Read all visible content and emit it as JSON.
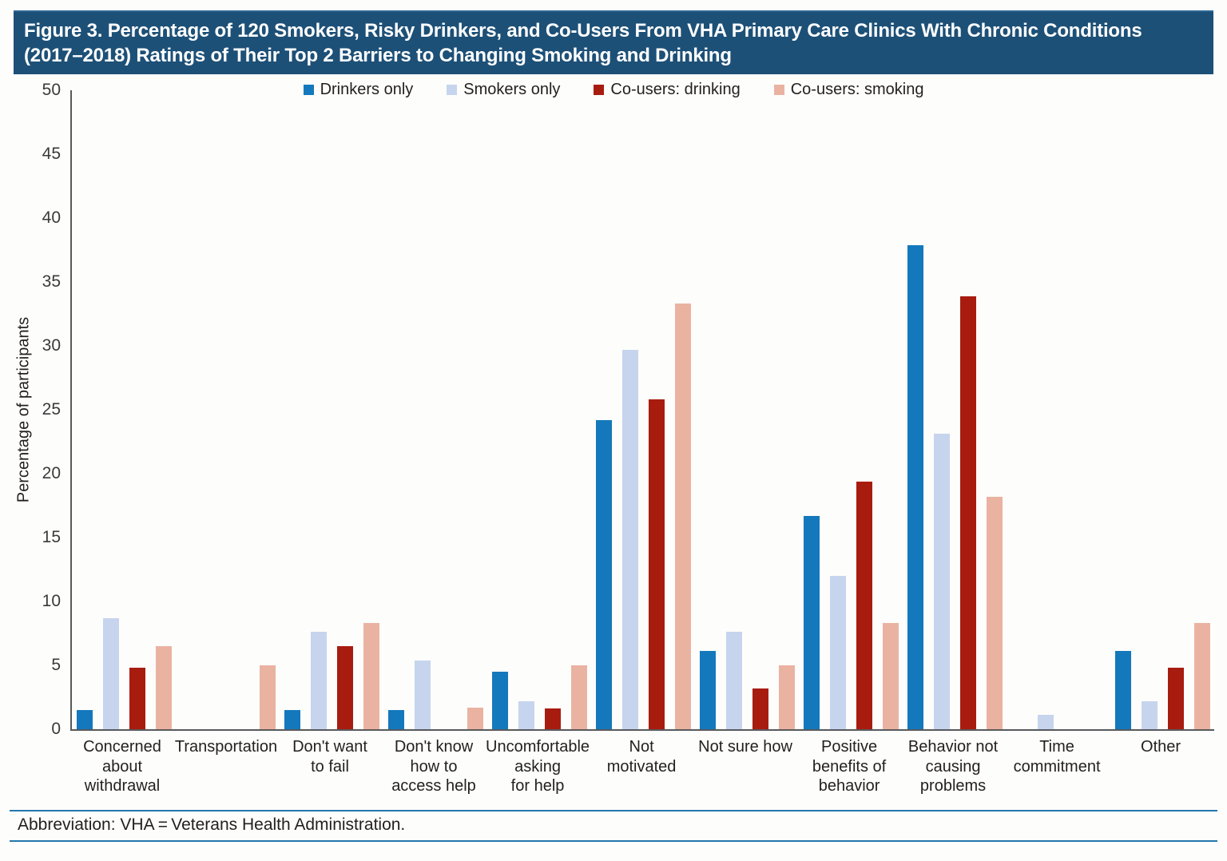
{
  "title": {
    "line1": "Figure 3. Percentage of 120 Smokers, Risky Drinkers, and Co-Users From VHA Primary Care Clinics With Chronic Conditions",
    "line2": "(2017–2018) Ratings of Their Top 2 Barriers to Changing Smoking and Drinking"
  },
  "footnote": "Abbreviation: VHA = Veterans Health Administration.",
  "colors": {
    "banner_bg": "#1d5077",
    "banner_text": "#ffffff",
    "rule": "#2177ad",
    "axis": "#58595b",
    "text": "#231f20"
  },
  "chart_data": {
    "type": "bar",
    "title": "",
    "xlabel": "",
    "ylabel": "Percentage of participants",
    "ylim": [
      0,
      50
    ],
    "ytick_step": 5,
    "grid": false,
    "legend_position": "top-center",
    "categories": [
      "Concerned\nabout\nwithdrawal",
      "Transportation",
      "Don't want\nto fail",
      "Don't know\nhow to\naccess help",
      "Uncomfortable\nasking\nfor help",
      "Not\nmotivated",
      "Not sure how",
      "Positive\nbenefits of\nbehavior",
      "Behavior not\ncausing\nproblems",
      "Time\ncommitment",
      "Other"
    ],
    "series": [
      {
        "name": "Drinkers only",
        "color": "#1478bc",
        "values": [
          1.5,
          0,
          1.5,
          1.5,
          4.5,
          24.2,
          6.1,
          16.7,
          37.9,
          0,
          6.1
        ]
      },
      {
        "name": "Smokers only",
        "color": "#c6d4ee",
        "values": [
          8.7,
          0,
          7.6,
          5.4,
          2.2,
          29.7,
          7.6,
          12.0,
          23.1,
          1.1,
          2.2
        ]
      },
      {
        "name": "Co-users: drinking",
        "color": "#a81c10",
        "values": [
          4.8,
          0,
          6.5,
          0,
          1.6,
          25.8,
          3.2,
          19.4,
          33.9,
          0,
          4.8
        ]
      },
      {
        "name": "Co-users: smoking",
        "color": "#eab3a1",
        "values": [
          6.5,
          5.0,
          8.3,
          1.7,
          5.0,
          33.3,
          5.0,
          8.3,
          18.2,
          0,
          8.3
        ]
      }
    ]
  }
}
